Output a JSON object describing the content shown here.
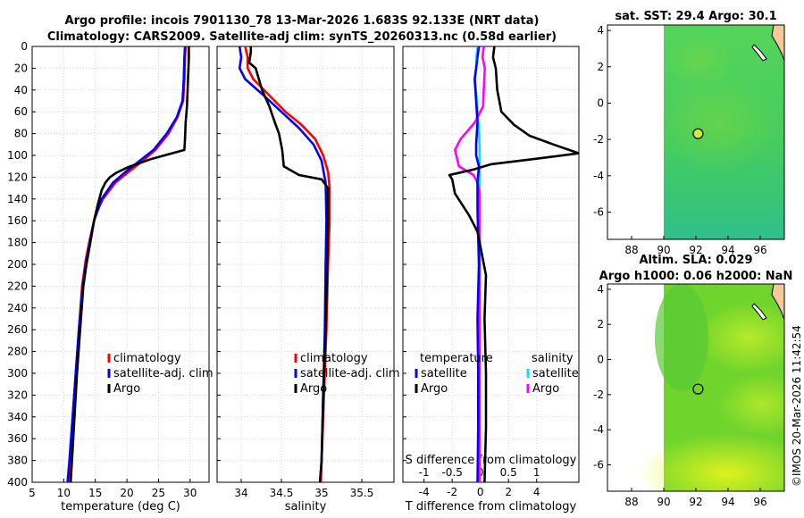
{
  "title": {
    "line1": "Argo profile: incois 7901130_78 13-Mar-2026 1.683S 92.133E (NRT data)",
    "line2": "Climatology: CARS2009. Satellite-adj clim: synTS_20260313.nc (0.58d earlier)"
  },
  "colors": {
    "climatology": "#ff0000",
    "satellite": "#0000ff",
    "argo": "#000000",
    "salinity_satellite": "#00e5ee",
    "salinity_argo": "#ff00ff",
    "land": "#f5c89a"
  },
  "depth_axis": {
    "min": 0,
    "max": 400,
    "ticks": [
      0,
      20,
      40,
      60,
      80,
      100,
      120,
      140,
      160,
      180,
      200,
      220,
      240,
      260,
      280,
      300,
      320,
      340,
      360,
      380,
      400
    ]
  },
  "chart_data": [
    {
      "type": "line",
      "name": "temperature",
      "xlabel": "temperature (deg C)",
      "xlim": [
        5,
        33
      ],
      "ylim": [
        0,
        400
      ],
      "xticks": [
        5,
        10,
        15,
        20,
        25,
        30
      ],
      "legend": [
        "climatology",
        "satellite-adj. clim",
        "Argo"
      ],
      "series": [
        {
          "name": "climatology",
          "color": "#ff0000",
          "points": [
            [
              29.3,
              0
            ],
            [
              29.2,
              10
            ],
            [
              29.1,
              30
            ],
            [
              28.9,
              50
            ],
            [
              28,
              65
            ],
            [
              26.6,
              80
            ],
            [
              24.5,
              95
            ],
            [
              22.5,
              105
            ],
            [
              20.3,
              115
            ],
            [
              18.2,
              125
            ],
            [
              16.2,
              140
            ],
            [
              15,
              155
            ],
            [
              14.2,
              175
            ],
            [
              13.5,
              195
            ],
            [
              12.9,
              220
            ],
            [
              12.4,
              260
            ],
            [
              11.9,
              300
            ],
            [
              11.4,
              340
            ],
            [
              11,
              380
            ],
            [
              10.8,
              400
            ]
          ]
        },
        {
          "name": "satellite-adj. clim",
          "color": "#0000ff",
          "points": [
            [
              29.2,
              0
            ],
            [
              29.1,
              10
            ],
            [
              29,
              30
            ],
            [
              28.8,
              50
            ],
            [
              27.9,
              65
            ],
            [
              26.3,
              80
            ],
            [
              24.2,
              95
            ],
            [
              22,
              105
            ],
            [
              19.8,
              115
            ],
            [
              17.8,
              125
            ],
            [
              16,
              140
            ],
            [
              14.8,
              160
            ],
            [
              14.1,
              180
            ],
            [
              13.5,
              200
            ],
            [
              13,
              220
            ],
            [
              12.4,
              260
            ],
            [
              11.9,
              300
            ],
            [
              11.4,
              340
            ],
            [
              10.9,
              380
            ],
            [
              10.6,
              400
            ]
          ]
        },
        {
          "name": "Argo",
          "color": "#000000",
          "points": [
            [
              29.8,
              0
            ],
            [
              29.8,
              10
            ],
            [
              29.7,
              25
            ],
            [
              29.6,
              40
            ],
            [
              29.5,
              55
            ],
            [
              29.3,
              70
            ],
            [
              29.2,
              85
            ],
            [
              29.1,
              95
            ],
            [
              24,
              103
            ],
            [
              20.1,
              111
            ],
            [
              18.3,
              116
            ],
            [
              17.3,
              120
            ],
            [
              16.6,
              125
            ],
            [
              16,
              132
            ],
            [
              15.4,
              145
            ],
            [
              14.8,
              160
            ],
            [
              14.2,
              180
            ],
            [
              13.6,
              200
            ],
            [
              13.1,
              220
            ],
            [
              12.6,
              260
            ],
            [
              12.1,
              300
            ],
            [
              11.7,
              340
            ],
            [
              11.3,
              380
            ],
            [
              11.1,
              400
            ]
          ]
        }
      ]
    },
    {
      "type": "line",
      "name": "salinity",
      "xlabel": "salinity",
      "xlim": [
        33.7,
        35.9
      ],
      "ylim": [
        0,
        400
      ],
      "xticks": [
        34,
        34.5,
        35,
        35.5
      ],
      "legend": [
        "climatology",
        "satellite-adj. clim",
        "Argo"
      ],
      "series": [
        {
          "name": "climatology",
          "color": "#ff0000",
          "points": [
            [
              34.05,
              0
            ],
            [
              34.08,
              10
            ],
            [
              34.08,
              20
            ],
            [
              34.15,
              30
            ],
            [
              34.35,
              45
            ],
            [
              34.55,
              60
            ],
            [
              34.75,
              72
            ],
            [
              34.92,
              85
            ],
            [
              35.02,
              100
            ],
            [
              35.08,
              115
            ],
            [
              35.1,
              130
            ],
            [
              35.1,
              160
            ],
            [
              35.08,
              200
            ],
            [
              35.06,
              260
            ],
            [
              35.03,
              320
            ],
            [
              35,
              380
            ],
            [
              34.99,
              400
            ]
          ]
        },
        {
          "name": "satellite-adj. clim",
          "color": "#0000ff",
          "points": [
            [
              33.98,
              0
            ],
            [
              34,
              10
            ],
            [
              33.98,
              20
            ],
            [
              34.05,
              30
            ],
            [
              34.28,
              45
            ],
            [
              34.5,
              60
            ],
            [
              34.72,
              75
            ],
            [
              34.9,
              90
            ],
            [
              35,
              105
            ],
            [
              35.05,
              125
            ],
            [
              35.06,
              160
            ],
            [
              35.05,
              200
            ],
            [
              35.04,
              260
            ],
            [
              35.02,
              320
            ],
            [
              35,
              380
            ],
            [
              34.98,
              400
            ]
          ]
        },
        {
          "name": "Argo",
          "color": "#000000",
          "points": [
            [
              34.12,
              0
            ],
            [
              34.12,
              5
            ],
            [
              34.1,
              15
            ],
            [
              34.18,
              20
            ],
            [
              34.22,
              30
            ],
            [
              34.26,
              40
            ],
            [
              34.35,
              55
            ],
            [
              34.42,
              70
            ],
            [
              34.47,
              80
            ],
            [
              34.51,
              95
            ],
            [
              34.53,
              110
            ],
            [
              34.72,
              118
            ],
            [
              35,
              122
            ],
            [
              35.08,
              130
            ],
            [
              35.08,
              160
            ],
            [
              35.07,
              200
            ],
            [
              35.05,
              260
            ],
            [
              35.02,
              320
            ],
            [
              35,
              380
            ],
            [
              34.98,
              400
            ]
          ]
        }
      ]
    },
    {
      "type": "line",
      "name": "difference",
      "xlabel": "T difference from climatology",
      "secondary_xlabel": "S difference from climatology",
      "xlim": [
        -5.5,
        7
      ],
      "ylim": [
        0,
        400
      ],
      "xticks": [
        -4,
        -2,
        0,
        2,
        4
      ],
      "secondary_xlim": [
        -1.375,
        1.75
      ],
      "secondary_xticks": [
        -1,
        -0.5,
        0,
        0.5,
        1
      ],
      "legend": {
        "temperature_header": "temperature",
        "salinity_header": "salinity",
        "entries": [
          "satellite",
          "Argo",
          "satellite",
          "Argo"
        ]
      },
      "series": [
        {
          "name": "T satellite",
          "color": "#0000ff",
          "units": "T",
          "points": [
            [
              -0.1,
              0
            ],
            [
              -0.2,
              10
            ],
            [
              -0.4,
              30
            ],
            [
              -0.3,
              50
            ],
            [
              -0.2,
              70
            ],
            [
              -0.3,
              90
            ],
            [
              -0.3,
              100
            ],
            [
              -0.1,
              110
            ],
            [
              -0.2,
              125
            ],
            [
              -0.2,
              150
            ],
            [
              -0.1,
              200
            ],
            [
              -0.2,
              250
            ],
            [
              -0.15,
              300
            ],
            [
              -0.15,
              350
            ],
            [
              -0.2,
              400
            ]
          ]
        },
        {
          "name": "T Argo",
          "color": "#000000",
          "units": "T",
          "points": [
            [
              1,
              0
            ],
            [
              0.9,
              10
            ],
            [
              1.1,
              20
            ],
            [
              1.2,
              40
            ],
            [
              1.5,
              60
            ],
            [
              2.4,
              72
            ],
            [
              3.5,
              82
            ],
            [
              5.2,
              90
            ],
            [
              7,
              98
            ],
            [
              4,
              103
            ],
            [
              0.8,
              108
            ],
            [
              -0.5,
              113
            ],
            [
              -2.2,
              118
            ],
            [
              -2,
              122
            ],
            [
              -1.8,
              135
            ],
            [
              -0.8,
              155
            ],
            [
              -0.2,
              170
            ],
            [
              0.1,
              190
            ],
            [
              0.4,
              210
            ],
            [
              0.3,
              250
            ],
            [
              0.4,
              300
            ],
            [
              0.4,
              350
            ],
            [
              0.3,
              400
            ]
          ]
        },
        {
          "name": "S satellite",
          "color": "#00e5ee",
          "units": "S",
          "points": [
            [
              -0.05,
              0
            ],
            [
              -0.07,
              10
            ],
            [
              -0.07,
              20
            ],
            [
              -0.1,
              30
            ],
            [
              -0.07,
              45
            ],
            [
              -0.05,
              60
            ],
            [
              -0.02,
              80
            ],
            [
              -0.01,
              100
            ],
            [
              -0.01,
              130
            ],
            [
              -0.01,
              160
            ],
            [
              -0.01,
              200
            ],
            [
              -0.01,
              260
            ],
            [
              -0.02,
              320
            ],
            [
              -0.02,
              380
            ],
            [
              -0.01,
              400
            ]
          ]
        },
        {
          "name": "S Argo",
          "color": "#ff00ff",
          "units": "S",
          "points": [
            [
              0.06,
              0
            ],
            [
              0.04,
              10
            ],
            [
              0.08,
              20
            ],
            [
              0.06,
              40
            ],
            [
              0.05,
              55
            ],
            [
              -0.1,
              70
            ],
            [
              -0.35,
              85
            ],
            [
              -0.45,
              95
            ],
            [
              -0.38,
              110
            ],
            [
              -0.12,
              118
            ],
            [
              -0.05,
              125
            ],
            [
              -0.01,
              135
            ],
            [
              -0.01,
              160
            ],
            [
              -0.01,
              200
            ],
            [
              -0.01,
              260
            ],
            [
              -0.01,
              320
            ],
            [
              -0.01,
              380
            ],
            [
              -0.01,
              400
            ]
          ]
        }
      ]
    },
    {
      "type": "heatmap",
      "name": "sst_map",
      "title": "sat. SST: 29.4 Argo: 30.1",
      "xticks": [
        88,
        90,
        92,
        94,
        96
      ],
      "yticks": [
        4,
        2,
        0,
        -2,
        -4,
        -6
      ],
      "xlim": [
        86.5,
        97.5
      ],
      "ylim": [
        -7.5,
        4.3
      ],
      "data_xmin": 90,
      "float": {
        "lon": 92.133,
        "lat": -1.683
      }
    },
    {
      "type": "heatmap",
      "name": "sla_map",
      "title": "Altim. SLA: 0.029",
      "subtitle": "Argo h1000: 0.06 h2000: NaN",
      "xticks": [
        88,
        90,
        92,
        94,
        96
      ],
      "yticks": [
        4,
        2,
        0,
        -2,
        -4,
        -6
      ],
      "xlim": [
        86.5,
        97.5
      ],
      "ylim": [
        -7.5,
        4.3
      ],
      "data_xmin": 90,
      "float": {
        "lon": 92.133,
        "lat": -1.683
      }
    }
  ],
  "copyright": "©IMOS 20-Mar-2026 11:42:54"
}
